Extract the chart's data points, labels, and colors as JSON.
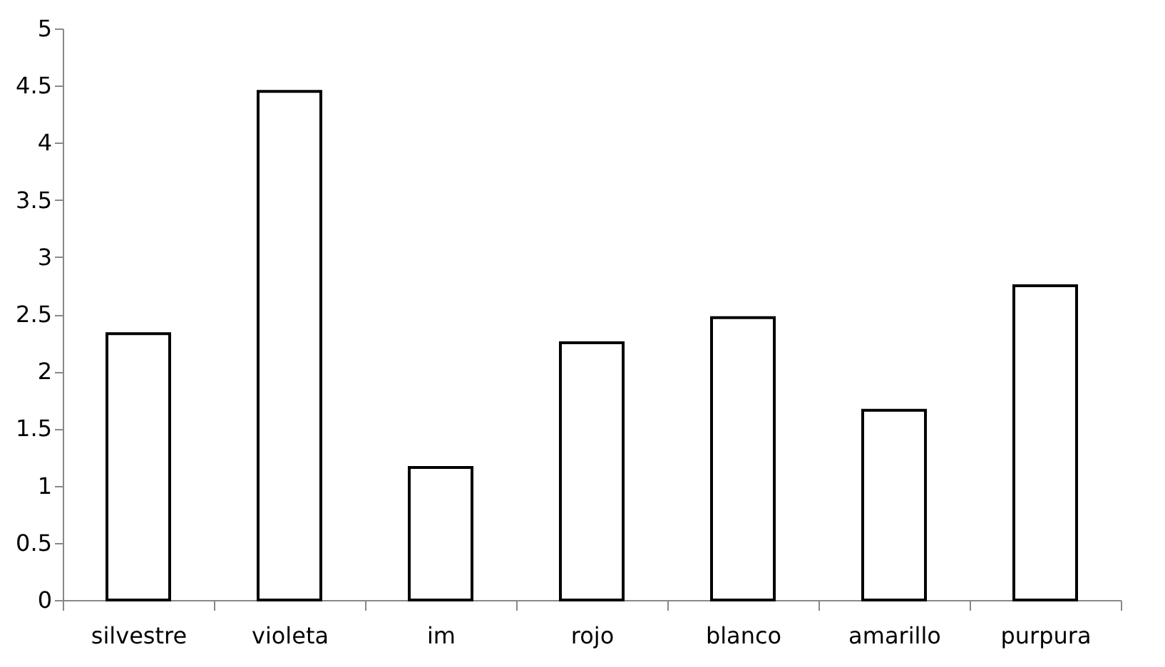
{
  "chart_data": {
    "type": "bar",
    "categories": [
      "silvestre",
      "violeta",
      "im",
      "rojo",
      "blanco",
      "amarillo",
      "purpura"
    ],
    "values": [
      2.33,
      4.45,
      1.16,
      2.25,
      2.47,
      1.66,
      2.75
    ],
    "color": "#ffffff",
    "ylim": [
      0,
      5
    ],
    "yticks": [
      0,
      0.5,
      1,
      1.5,
      2,
      2.5,
      3,
      3.5,
      4,
      4.5,
      5
    ],
    "grid": false
  }
}
